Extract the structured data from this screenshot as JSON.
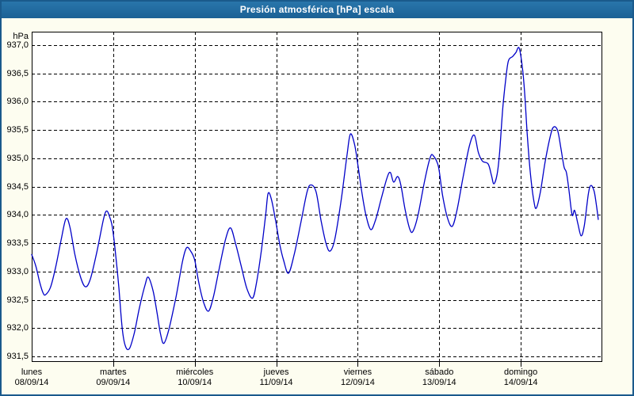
{
  "window": {
    "title": "Presión atmosférica [hPa] escala",
    "colors": {
      "titlebar_top": "#2a78ad",
      "titlebar_bottom": "#1b6195",
      "frame_border": "#1a5a8c",
      "window_background": "#fdfdf0",
      "plot_background": "#ffffff",
      "grid_color": "#000000",
      "line_color": "#0101c8",
      "label_color": "#000000"
    }
  },
  "chart_data": {
    "type": "line",
    "title": "Presión atmosférica [hPa] escala",
    "ylabel_unit": "hPa",
    "ylim": [
      931.5,
      937.0
    ],
    "ytick_step": 0.5,
    "ytick_labels": [
      "937,0",
      "936,5",
      "936,0",
      "935,5",
      "935,0",
      "934,5",
      "934,0",
      "933,5",
      "933,0",
      "932,5",
      "932,0",
      "931,5"
    ],
    "grid": "dashed-black",
    "legend": "none",
    "x_categories": [
      {
        "day": "lunes",
        "date": "08/09/14"
      },
      {
        "day": "martes",
        "date": "09/09/14"
      },
      {
        "day": "miércoles",
        "date": "10/09/14"
      },
      {
        "day": "jueves",
        "date": "11/09/14"
      },
      {
        "day": "viernes",
        "date": "12/09/14"
      },
      {
        "day": "sábado",
        "date": "13/09/14"
      },
      {
        "day": "domingo",
        "date": "14/09/14"
      }
    ],
    "series": [
      {
        "name": "Presión atmosférica [hPa]",
        "x_unit": "days_since_monday_00h",
        "points": [
          [
            0.0,
            933.3
          ],
          [
            0.05,
            933.1
          ],
          [
            0.1,
            932.8
          ],
          [
            0.14,
            932.62
          ],
          [
            0.17,
            932.59
          ],
          [
            0.23,
            932.72
          ],
          [
            0.29,
            933.05
          ],
          [
            0.36,
            933.55
          ],
          [
            0.42,
            933.93
          ],
          [
            0.47,
            933.78
          ],
          [
            0.53,
            933.3
          ],
          [
            0.6,
            932.9
          ],
          [
            0.66,
            932.73
          ],
          [
            0.72,
            932.87
          ],
          [
            0.8,
            933.35
          ],
          [
            0.88,
            933.92
          ],
          [
            0.92,
            934.07
          ],
          [
            0.96,
            933.95
          ],
          [
            0.99,
            933.78
          ],
          [
            1.03,
            933.3
          ],
          [
            1.07,
            932.7
          ],
          [
            1.11,
            932.0
          ],
          [
            1.15,
            931.68
          ],
          [
            1.2,
            931.64
          ],
          [
            1.26,
            931.92
          ],
          [
            1.32,
            932.35
          ],
          [
            1.39,
            932.76
          ],
          [
            1.43,
            932.9
          ],
          [
            1.49,
            932.65
          ],
          [
            1.54,
            932.25
          ],
          [
            1.58,
            931.9
          ],
          [
            1.62,
            931.73
          ],
          [
            1.68,
            931.96
          ],
          [
            1.77,
            932.55
          ],
          [
            1.85,
            933.18
          ],
          [
            1.9,
            933.42
          ],
          [
            1.95,
            933.36
          ],
          [
            2.0,
            933.2
          ],
          [
            2.05,
            932.8
          ],
          [
            2.11,
            932.45
          ],
          [
            2.17,
            932.3
          ],
          [
            2.23,
            932.56
          ],
          [
            2.3,
            933.05
          ],
          [
            2.38,
            933.58
          ],
          [
            2.44,
            933.77
          ],
          [
            2.5,
            933.5
          ],
          [
            2.57,
            933.1
          ],
          [
            2.64,
            932.7
          ],
          [
            2.71,
            932.53
          ],
          [
            2.76,
            932.82
          ],
          [
            2.82,
            933.4
          ],
          [
            2.87,
            934.0
          ],
          [
            2.9,
            934.38
          ],
          [
            2.94,
            934.28
          ],
          [
            2.99,
            933.92
          ],
          [
            3.04,
            933.5
          ],
          [
            3.09,
            933.2
          ],
          [
            3.15,
            932.97
          ],
          [
            3.22,
            933.3
          ],
          [
            3.3,
            933.85
          ],
          [
            3.38,
            934.42
          ],
          [
            3.43,
            934.53
          ],
          [
            3.49,
            934.4
          ],
          [
            3.55,
            933.9
          ],
          [
            3.61,
            933.5
          ],
          [
            3.66,
            933.36
          ],
          [
            3.72,
            933.58
          ],
          [
            3.8,
            934.3
          ],
          [
            3.87,
            935.08
          ],
          [
            3.91,
            935.43
          ],
          [
            3.96,
            935.25
          ],
          [
            4.0,
            934.9
          ],
          [
            4.05,
            934.4
          ],
          [
            4.1,
            934.0
          ],
          [
            4.16,
            933.74
          ],
          [
            4.22,
            933.92
          ],
          [
            4.29,
            934.3
          ],
          [
            4.36,
            934.66
          ],
          [
            4.4,
            934.75
          ],
          [
            4.44,
            934.58
          ],
          [
            4.49,
            934.68
          ],
          [
            4.53,
            934.52
          ],
          [
            4.58,
            934.1
          ],
          [
            4.64,
            933.74
          ],
          [
            4.68,
            933.72
          ],
          [
            4.74,
            934.0
          ],
          [
            4.82,
            934.6
          ],
          [
            4.89,
            935.02
          ],
          [
            4.93,
            935.04
          ],
          [
            4.99,
            934.85
          ],
          [
            5.04,
            934.35
          ],
          [
            5.1,
            933.95
          ],
          [
            5.16,
            933.8
          ],
          [
            5.22,
            934.1
          ],
          [
            5.29,
            934.65
          ],
          [
            5.37,
            935.22
          ],
          [
            5.43,
            935.41
          ],
          [
            5.48,
            935.1
          ],
          [
            5.53,
            934.95
          ],
          [
            5.6,
            934.9
          ],
          [
            5.64,
            934.7
          ],
          [
            5.67,
            934.55
          ],
          [
            5.71,
            934.72
          ],
          [
            5.74,
            935.1
          ],
          [
            5.78,
            935.9
          ],
          [
            5.82,
            936.45
          ],
          [
            5.85,
            936.73
          ],
          [
            5.9,
            936.8
          ],
          [
            5.94,
            936.87
          ],
          [
            5.98,
            936.95
          ],
          [
            6.02,
            936.6
          ],
          [
            6.05,
            936.1
          ],
          [
            6.08,
            935.4
          ],
          [
            6.12,
            934.7
          ],
          [
            6.16,
            934.25
          ],
          [
            6.19,
            934.12
          ],
          [
            6.24,
            934.4
          ],
          [
            6.3,
            934.95
          ],
          [
            6.36,
            935.38
          ],
          [
            6.4,
            935.55
          ],
          [
            6.45,
            935.5
          ],
          [
            6.49,
            935.2
          ],
          [
            6.53,
            934.85
          ],
          [
            6.56,
            934.75
          ],
          [
            6.59,
            934.45
          ],
          [
            6.63,
            934.0
          ],
          [
            6.66,
            934.08
          ],
          [
            6.7,
            933.85
          ],
          [
            6.74,
            933.63
          ],
          [
            6.78,
            933.82
          ],
          [
            6.83,
            934.38
          ],
          [
            6.86,
            934.52
          ],
          [
            6.9,
            934.42
          ],
          [
            6.93,
            934.15
          ],
          [
            6.95,
            933.92
          ]
        ]
      }
    ]
  }
}
